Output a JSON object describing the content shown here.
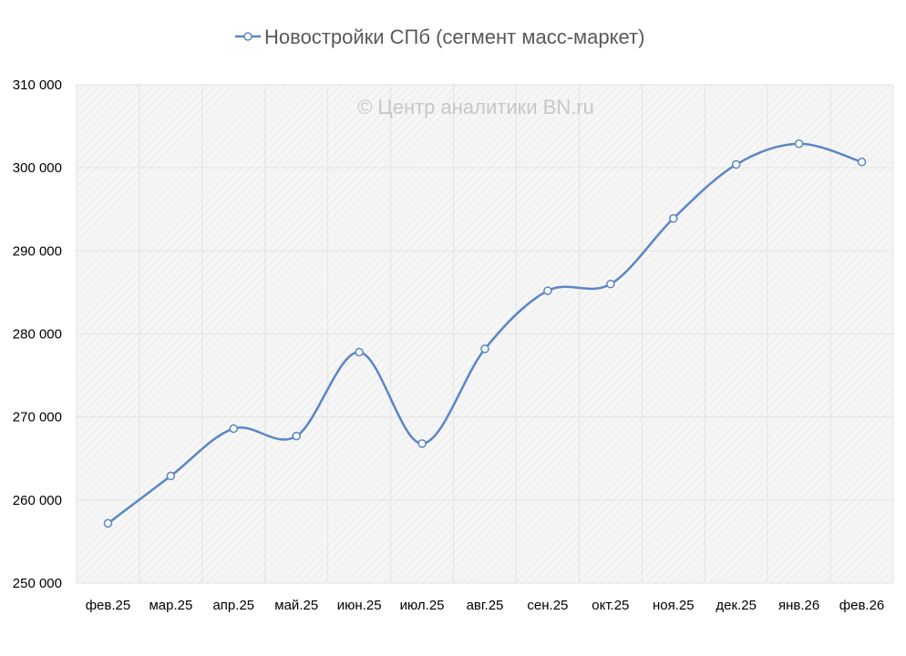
{
  "chart_data": {
    "type": "line",
    "smooth": true,
    "categories": [
      "фев.25",
      "мар.25",
      "апр.25",
      "май.25",
      "июн.25",
      "июл.25",
      "авг.25",
      "сен.25",
      "окт.25",
      "ноя.25",
      "дек.25",
      "янв.26",
      "фев.26"
    ],
    "series": [
      {
        "name": "Новостройки СПб (сегмент масс-маркет)",
        "values": [
          257200,
          262900,
          268600,
          267700,
          277800,
          266800,
          278200,
          285200,
          286000,
          293900,
          300400,
          302900,
          300700
        ],
        "color": "#5b86c5"
      }
    ],
    "ylim": [
      250000,
      310000
    ],
    "yticks": [
      250000,
      260000,
      270000,
      280000,
      290000,
      300000,
      310000
    ],
    "ytick_labels": [
      "250 000",
      "260 000",
      "270 000",
      "280 000",
      "290 000",
      "300 000",
      "310 000"
    ],
    "legend_position": "top-center",
    "grid": "both",
    "plot_background": "hatched-gray",
    "watermark": "© Центр аналитики BN.ru"
  }
}
